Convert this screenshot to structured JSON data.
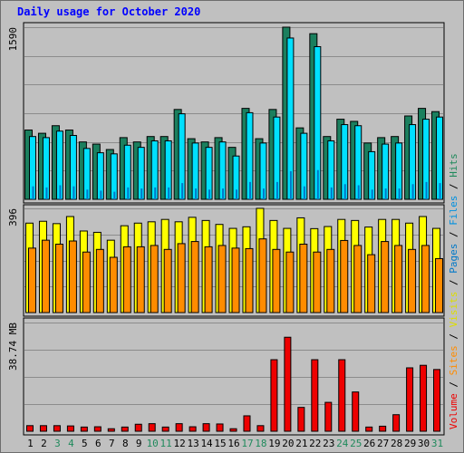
{
  "title": "Daily usage for October 2020",
  "colors": {
    "hits": "#1b7f5e",
    "files": "#00e0ff",
    "pages": "#0078c8",
    "visits": "#ffff00",
    "sites": "#ff8c00",
    "volume": "#ee0000",
    "weekend_label": "#1f8a5c",
    "weekday_label": "#000000",
    "separator": "#000000"
  },
  "legend": [
    {
      "label": "Volume",
      "color": "#ee0000"
    },
    {
      "label": "Sites",
      "color": "#ff8c00"
    },
    {
      "label": "Visits",
      "color": "#dddd00"
    },
    {
      "label": "Pages",
      "color": "#0078c8"
    },
    {
      "label": "Files",
      "color": "#0090e0"
    },
    {
      "label": "Hits",
      "color": "#1f8a5c"
    }
  ],
  "legend_separator": "/",
  "chart_data": [
    {
      "type": "bar",
      "panel": "hits_files_pages",
      "ymax_label": "1590",
      "ylim": [
        0,
        1590
      ],
      "categories": [
        "1",
        "2",
        "3",
        "4",
        "5",
        "6",
        "7",
        "8",
        "9",
        "10",
        "11",
        "12",
        "13",
        "14",
        "15",
        "16",
        "17",
        "18",
        "19",
        "20",
        "21",
        "22",
        "23",
        "24",
        "25",
        "26",
        "27",
        "28",
        "29",
        "30",
        "31"
      ],
      "weekend_days": [
        "3",
        "4",
        "10",
        "11",
        "17",
        "18",
        "24",
        "25",
        "31"
      ],
      "series": [
        {
          "name": "Hits",
          "values": [
            640,
            610,
            680,
            640,
            530,
            510,
            460,
            570,
            530,
            580,
            580,
            830,
            560,
            530,
            570,
            480,
            840,
            560,
            830,
            1590,
            660,
            1530,
            580,
            740,
            720,
            520,
            570,
            580,
            770,
            840,
            810
          ]
        },
        {
          "name": "Files",
          "values": [
            580,
            570,
            630,
            590,
            470,
            430,
            420,
            500,
            480,
            540,
            540,
            790,
            520,
            480,
            530,
            400,
            800,
            520,
            760,
            1490,
            610,
            1410,
            540,
            690,
            680,
            440,
            510,
            520,
            690,
            740,
            760
          ]
        },
        {
          "name": "Pages",
          "values": [
            120,
            110,
            130,
            120,
            90,
            80,
            70,
            110,
            100,
            110,
            110,
            150,
            100,
            90,
            100,
            90,
            160,
            100,
            160,
            260,
            120,
            270,
            110,
            140,
            130,
            90,
            100,
            100,
            140,
            160,
            150
          ]
        }
      ]
    },
    {
      "type": "bar",
      "panel": "visits_sites",
      "ymax_label": "396",
      "ylim": [
        0,
        396
      ],
      "categories": [
        "1",
        "2",
        "3",
        "4",
        "5",
        "6",
        "7",
        "8",
        "9",
        "10",
        "11",
        "12",
        "13",
        "14",
        "15",
        "16",
        "17",
        "18",
        "19",
        "20",
        "21",
        "22",
        "23",
        "24",
        "25",
        "26",
        "27",
        "28",
        "29",
        "30",
        "31"
      ],
      "series": [
        {
          "name": "Visits",
          "values": [
            340,
            347,
            338,
            365,
            310,
            305,
            275,
            330,
            340,
            345,
            354,
            345,
            362,
            350,
            335,
            320,
            326,
            396,
            350,
            320,
            360,
            319,
            327,
            354,
            350,
            325,
            354,
            354,
            340,
            365,
            320
          ]
        },
        {
          "name": "Sites",
          "values": [
            245,
            275,
            260,
            272,
            230,
            240,
            210,
            250,
            250,
            255,
            240,
            262,
            270,
            250,
            255,
            245,
            243,
            280,
            240,
            230,
            260,
            230,
            240,
            274,
            255,
            220,
            270,
            255,
            240,
            255,
            205
          ]
        }
      ]
    },
    {
      "type": "bar",
      "panel": "volume",
      "ymax_label": "38.74 MB",
      "ylim": [
        0,
        38.74
      ],
      "categories": [
        "1",
        "2",
        "3",
        "4",
        "5",
        "6",
        "7",
        "8",
        "9",
        "10",
        "11",
        "12",
        "13",
        "14",
        "15",
        "16",
        "17",
        "18",
        "19",
        "20",
        "21",
        "22",
        "23",
        "24",
        "25",
        "26",
        "27",
        "28",
        "29",
        "30",
        "31"
      ],
      "series": [
        {
          "name": "Volume",
          "values": [
            2.0,
            2.0,
            2.0,
            1.9,
            1.5,
            1.6,
            0.9,
            1.5,
            2.5,
            2.7,
            1.5,
            2.7,
            1.6,
            2.7,
            2.6,
            0.9,
            5.5,
            2.0,
            25.5,
            33.5,
            8.5,
            25.5,
            10.3,
            25.5,
            14.0,
            1.5,
            1.8,
            5.9,
            22.6,
            23.5,
            22.0
          ]
        }
      ]
    }
  ]
}
